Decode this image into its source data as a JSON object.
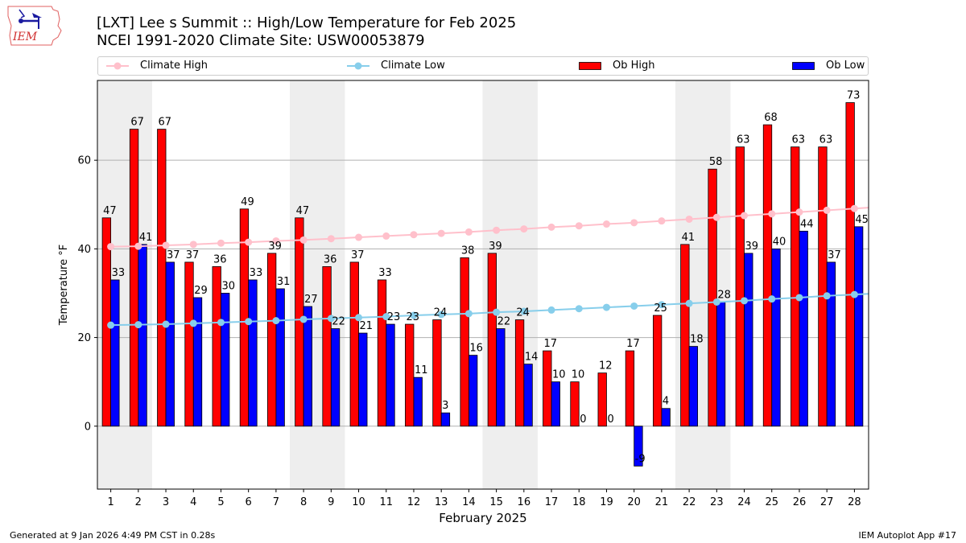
{
  "header": {
    "logo_text": "IEM",
    "title_line1": "[LXT] Lee s Summit :: High/Low Temperature for Feb 2025",
    "title_line2": "NCEI 1991-2020 Climate Site: USW00053879"
  },
  "footer": {
    "generated": "Generated at 9 Jan 2026 4:49 PM CST in 0.28s",
    "app": "IEM Autoplot App #17"
  },
  "colors": {
    "ob_high": "#ff0000",
    "ob_low": "#0000ff",
    "climate_high": "#ffc0cb",
    "climate_low": "#87ceeb",
    "weekend_shade": "#eeeeee",
    "grid": "#b0b0b0"
  },
  "chart_data": {
    "type": "bar",
    "title": "[LXT] Lee s Summit :: High/Low Temperature for Feb 2025",
    "subtitle": "NCEI 1991-2020 Climate Site: USW00053879",
    "xlabel": "February 2025",
    "ylabel": "Temperature °F",
    "ylim": [
      -14.2,
      78
    ],
    "yticks": [
      0,
      20,
      40,
      60
    ],
    "grid": "y",
    "legend_placement": "top",
    "categories": [
      "1",
      "2",
      "3",
      "4",
      "5",
      "6",
      "7",
      "8",
      "9",
      "10",
      "11",
      "12",
      "13",
      "14",
      "15",
      "16",
      "17",
      "18",
      "19",
      "20",
      "21",
      "22",
      "23",
      "24",
      "25",
      "26",
      "27",
      "28"
    ],
    "shaded_days": [
      [
        1,
        2
      ],
      [
        8,
        9
      ],
      [
        15,
        16
      ],
      [
        22,
        23
      ]
    ],
    "series": [
      {
        "name": "Ob High",
        "kind": "bar",
        "values": [
          47,
          67,
          67,
          37,
          36,
          49,
          39,
          47,
          36,
          37,
          33,
          23,
          24,
          38,
          39,
          24,
          17,
          10,
          12,
          17,
          25,
          41,
          58,
          63,
          68,
          63,
          63,
          73
        ]
      },
      {
        "name": "Ob Low",
        "kind": "bar",
        "values": [
          33,
          41,
          37,
          29,
          30,
          33,
          31,
          27,
          22,
          21,
          23,
          11,
          3,
          16,
          22,
          14,
          10,
          0,
          0,
          -9,
          4,
          18,
          28,
          39,
          40,
          44,
          37,
          45
        ]
      },
      {
        "name": "Climate High",
        "kind": "line",
        "values": [
          40.5,
          40.6,
          40.8,
          41.0,
          41.3,
          41.5,
          41.8,
          42.0,
          42.3,
          42.6,
          42.9,
          43.2,
          43.5,
          43.8,
          44.2,
          44.5,
          44.9,
          45.2,
          45.6,
          45.9,
          46.3,
          46.7,
          47.1,
          47.5,
          47.9,
          48.3,
          48.7,
          49.1
        ]
      },
      {
        "name": "Climate Low",
        "kind": "line",
        "values": [
          22.8,
          22.9,
          23.0,
          23.2,
          23.4,
          23.6,
          23.8,
          24.1,
          24.3,
          24.5,
          24.7,
          25.0,
          25.2,
          25.4,
          25.7,
          25.9,
          26.2,
          26.5,
          26.8,
          27.1,
          27.4,
          27.7,
          28.0,
          28.3,
          28.7,
          29.0,
          29.4,
          29.7
        ]
      }
    ]
  }
}
